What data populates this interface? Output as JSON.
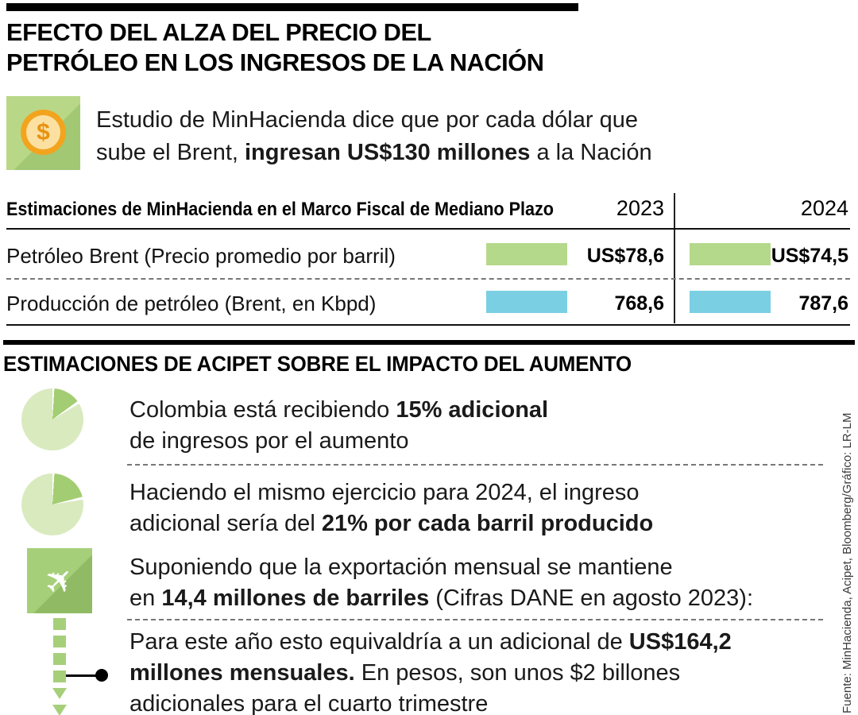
{
  "colors": {
    "bar_green": "#b5d98b",
    "bar_blue": "#7ad0e2",
    "icon_green": "#a6cf7a",
    "pie_slice": "#a3cd72",
    "pie_base": "#d9eabf",
    "coin_orange": "#f2a41e",
    "rule_black": "#000000"
  },
  "header": {
    "title_line1": "EFECTO DEL ALZA DEL PRECIO DEL",
    "title_line2": "PETRÓLEO EN LOS INGRESOS DE LA NACIÓN"
  },
  "intro": {
    "line1": "Estudio de MinHacienda dice que por cada dólar que",
    "line2_pre": "sube el Brent, ",
    "line2_bold": "ingresan US$130 millones",
    "line2_post": " a la Nación"
  },
  "table": {
    "header_label": "Estimaciones de MinHacienda en el Marco Fiscal de Mediano Plazo",
    "year1": "2023",
    "year2": "2024",
    "rows": [
      {
        "label": "Petróleo Brent (Precio promedio por barril)",
        "v2023": "US$78,6",
        "v2024": "US$74,5"
      },
      {
        "label": "Producción de petróleo (Brent, en Kbpd)",
        "v2023": "768,6",
        "v2024": "787,6"
      }
    ]
  },
  "section2": {
    "title": "ESTIMACIONES DE ACIPET SOBRE EL IMPACTO DEL AUMENTO",
    "item1": {
      "pct": 15,
      "line1_pre": "Colombia está recibiendo ",
      "line1_bold": "15% adicional",
      "line2": "de ingresos por el aumento"
    },
    "item2": {
      "pct": 21,
      "line1": "Haciendo el mismo ejercicio para 2024, el ingreso",
      "line2_pre": "adicional sería del ",
      "line2_bold": "21% por cada barril producido"
    },
    "item3": {
      "line1": "Suponiendo que la exportación mensual se mantiene",
      "line2_pre": "en ",
      "line2_bold": "14,4 millones de barriles",
      "line2_post": " (Cifras DANE en agosto 2023):"
    },
    "item4": {
      "line1_pre": "Para este año esto equivaldría a un adicional de ",
      "line1_bold": "US$164,2",
      "line2_bold": "millones mensuales.",
      "line2_post": " En pesos, son unos $2 billones",
      "line3": "adicionales para el cuarto trimestre"
    }
  },
  "source": "Fuente: MinHacienda, Acipet, Bloomberg/Gráfico: LR-LM",
  "chart_data": {
    "type": "bar",
    "title": "Estimaciones de MinHacienda en el Marco Fiscal de Mediano Plazo",
    "categories": [
      "2023",
      "2024"
    ],
    "series": [
      {
        "name": "Petróleo Brent (Precio promedio por barril)",
        "values": [
          78.6,
          74.5
        ],
        "value_labels": [
          "US$78,6",
          "US$74,5"
        ],
        "color": "#b5d98b"
      },
      {
        "name": "Producción de petróleo (Brent, en Kbpd)",
        "values": [
          768.6,
          787.6
        ],
        "value_labels": [
          "768,6",
          "787,6"
        ],
        "color": "#7ad0e2"
      }
    ],
    "extra_figures": {
      "ingreso_por_dolar_brent_usd_millones": 130,
      "ingreso_adicional_2023_pct": 15,
      "ingreso_adicional_2024_pct": 21,
      "exportacion_mensual_millones_barriles": 14.4,
      "adicional_mensual_usd_millones": 164.2,
      "adicional_cuarto_trimestre_billones_pesos": 2
    },
    "legend_position": "none",
    "grid": false
  }
}
